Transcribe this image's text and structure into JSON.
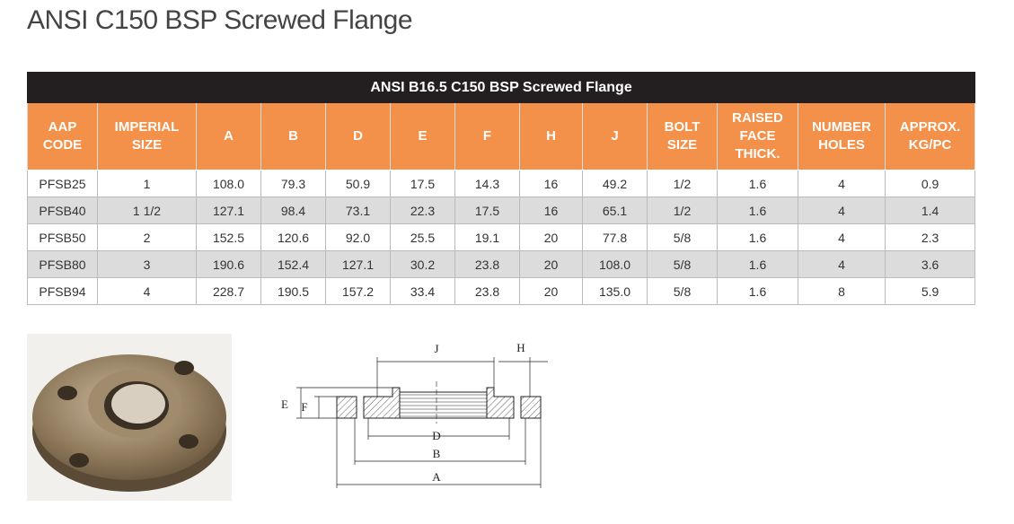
{
  "title": "ANSI C150 BSP Screwed Flange",
  "table": {
    "caption": "ANSI B16.5 C150 BSP Screwed Flange",
    "headers": [
      "AAP\nCODE",
      "IMPERIAL\nSIZE",
      "A",
      "B",
      "D",
      "E",
      "F",
      "H",
      "J",
      "BOLT\nSIZE",
      "RAISED\nFACE\nTHICK.",
      "NUMBER\nHOLES",
      "APPROX.\nKG/PC"
    ],
    "rows": [
      [
        "PFSB25",
        "1",
        "108.0",
        "79.3",
        "50.9",
        "17.5",
        "14.3",
        "16",
        "49.2",
        "1/2",
        "1.6",
        "4",
        "0.9"
      ],
      [
        "PFSB40",
        "1 1/2",
        "127.1",
        "98.4",
        "73.1",
        "22.3",
        "17.5",
        "16",
        "65.1",
        "1/2",
        "1.6",
        "4",
        "1.4"
      ],
      [
        "PFSB50",
        "2",
        "152.5",
        "120.6",
        "92.0",
        "25.5",
        "19.1",
        "20",
        "77.8",
        "5/8",
        "1.6",
        "4",
        "2.3"
      ],
      [
        "PFSB80",
        "3",
        "190.6",
        "152.4",
        "127.1",
        "30.2",
        "23.8",
        "20",
        "108.0",
        "5/8",
        "1.6",
        "4",
        "3.6"
      ],
      [
        "PFSB94",
        "4",
        "228.7",
        "190.5",
        "157.2",
        "33.4",
        "23.8",
        "20",
        "135.0",
        "5/8",
        "1.6",
        "8",
        "5.9"
      ]
    ]
  },
  "diagram": {
    "labels": [
      "J",
      "H",
      "E",
      "F",
      "D",
      "B",
      "A"
    ]
  }
}
